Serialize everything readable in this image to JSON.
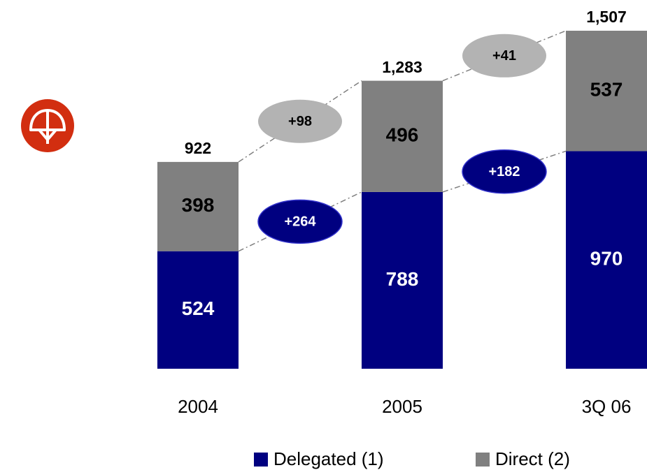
{
  "chart_data": {
    "type": "stacked_bar",
    "categories": [
      "2004",
      "2005",
      "3Q 06"
    ],
    "series": [
      {
        "name": "Delegated (1)",
        "color": "#000080",
        "values": [
          524,
          788,
          970
        ],
        "changes": [
          "+264",
          "+182"
        ],
        "change_color": "#000080"
      },
      {
        "name": "Direct (2)",
        "color": "#808080",
        "values": [
          398,
          496,
          537
        ],
        "changes": [
          "+98",
          "+41"
        ],
        "change_color": "#b3b3b3"
      }
    ],
    "totals": {
      "values": [
        922,
        1283,
        1507
      ],
      "value_labels": [
        "922",
        "1,283",
        "1,507"
      ]
    },
    "legend": "bottom"
  }
}
